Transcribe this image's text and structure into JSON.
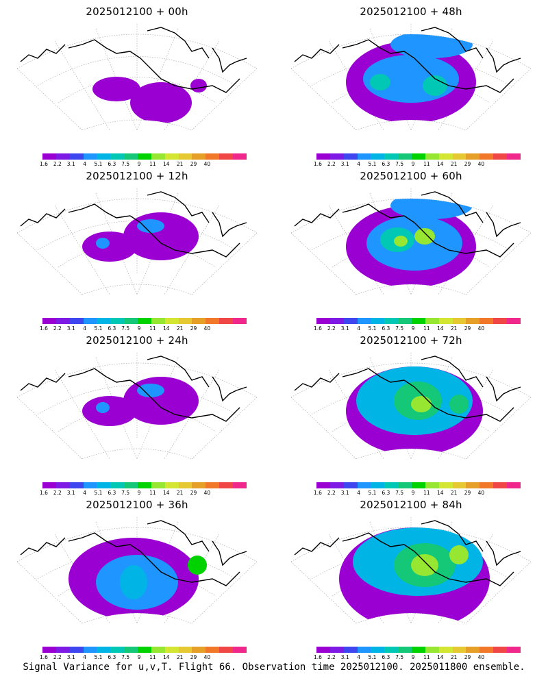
{
  "panels": [
    {
      "title": "2025012100 + 00h",
      "level": 0
    },
    {
      "title": "2025012100 + 48h",
      "level": 3
    },
    {
      "title": "2025012100 + 12h",
      "level": 1
    },
    {
      "title": "2025012100 + 60h",
      "level": 4
    },
    {
      "title": "2025012100 + 24h",
      "level": 1
    },
    {
      "title": "2025012100 + 72h",
      "level": 5
    },
    {
      "title": "2025012100 + 36h",
      "level": 2
    },
    {
      "title": "2025012100 + 84h",
      "level": 6
    }
  ],
  "colorbar": {
    "colors": [
      "#9b00d3",
      "#7d1ae6",
      "#3f46f0",
      "#1f96ff",
      "#00b4e6",
      "#00c8b4",
      "#14c878",
      "#00d200",
      "#96e632",
      "#d2e632",
      "#e6c832",
      "#e6a028",
      "#f07828",
      "#f04646",
      "#f0288c"
    ],
    "labels": [
      "1.6",
      "2.2",
      "3.1",
      "4",
      "5.1",
      "6.3",
      "7.5",
      "9",
      "11",
      "14",
      "21",
      "29",
      "40"
    ]
  },
  "footer": "Signal Variance for u,v,T. Flight 66. Observation time 2025012100. 2025011800 ensemble."
}
